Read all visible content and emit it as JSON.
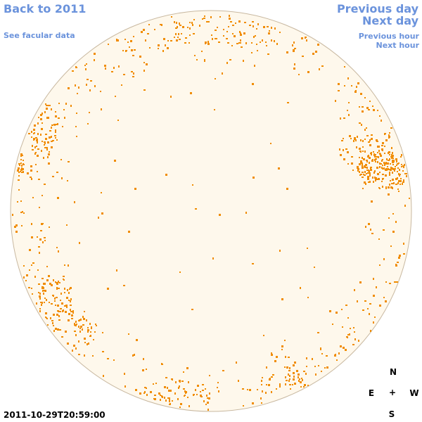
{
  "nav": {
    "back": "Back to 2011",
    "facular": "See facular data",
    "previous_day": "Previous day",
    "next_day": "Next day",
    "previous_hour": "Previous hour",
    "next_hour": "Next hour"
  },
  "compass": {
    "n": "N",
    "e": "E",
    "center": "+",
    "w": "W",
    "s": "S"
  },
  "timestamp": "2011-10-29T20:59:00",
  "colors": {
    "disk_fill": "#fef8ec",
    "disk_edge": "#c8b8a0",
    "facula": "#f08c00",
    "link": "#6b93dc"
  }
}
